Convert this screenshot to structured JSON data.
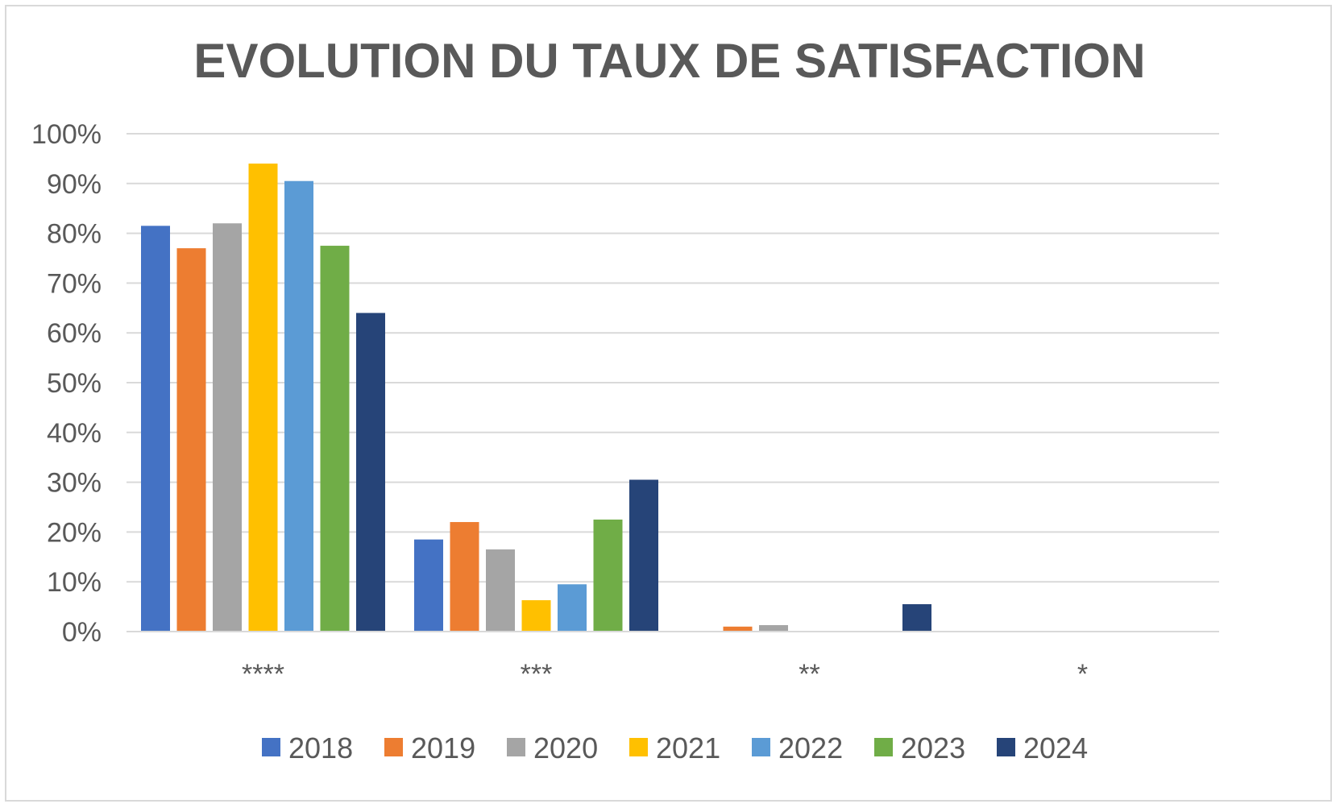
{
  "chart_data": {
    "type": "bar",
    "title": "EVOLUTION DU TAUX DE SATISFACTION",
    "categories": [
      "****",
      "***",
      "**",
      "*"
    ],
    "ylim": [
      0,
      100
    ],
    "ytick_values": [
      0,
      10,
      20,
      30,
      40,
      50,
      60,
      70,
      80,
      90,
      100
    ],
    "ytick_labels": [
      "0%",
      "10%",
      "20%",
      "30%",
      "40%",
      "50%",
      "60%",
      "70%",
      "80%",
      "90%",
      "100%"
    ],
    "grid": true,
    "legend_position": "bottom",
    "series": [
      {
        "name": "2018",
        "color": "#4472c4",
        "values": [
          81.5,
          18.5,
          0,
          0
        ]
      },
      {
        "name": "2019",
        "color": "#ed7d31",
        "values": [
          77,
          22,
          1,
          0
        ]
      },
      {
        "name": "2020",
        "color": "#a5a5a5",
        "values": [
          82,
          16.5,
          1.3,
          0
        ]
      },
      {
        "name": "2021",
        "color": "#ffc000",
        "values": [
          94,
          6.3,
          0,
          0
        ]
      },
      {
        "name": "2022",
        "color": "#5b9bd5",
        "values": [
          90.5,
          9.5,
          0,
          0
        ]
      },
      {
        "name": "2023",
        "color": "#70ad47",
        "values": [
          77.5,
          22.5,
          0,
          0
        ]
      },
      {
        "name": "2024",
        "color": "#264478",
        "values": [
          64,
          30.5,
          5.5,
          0
        ]
      }
    ]
  }
}
